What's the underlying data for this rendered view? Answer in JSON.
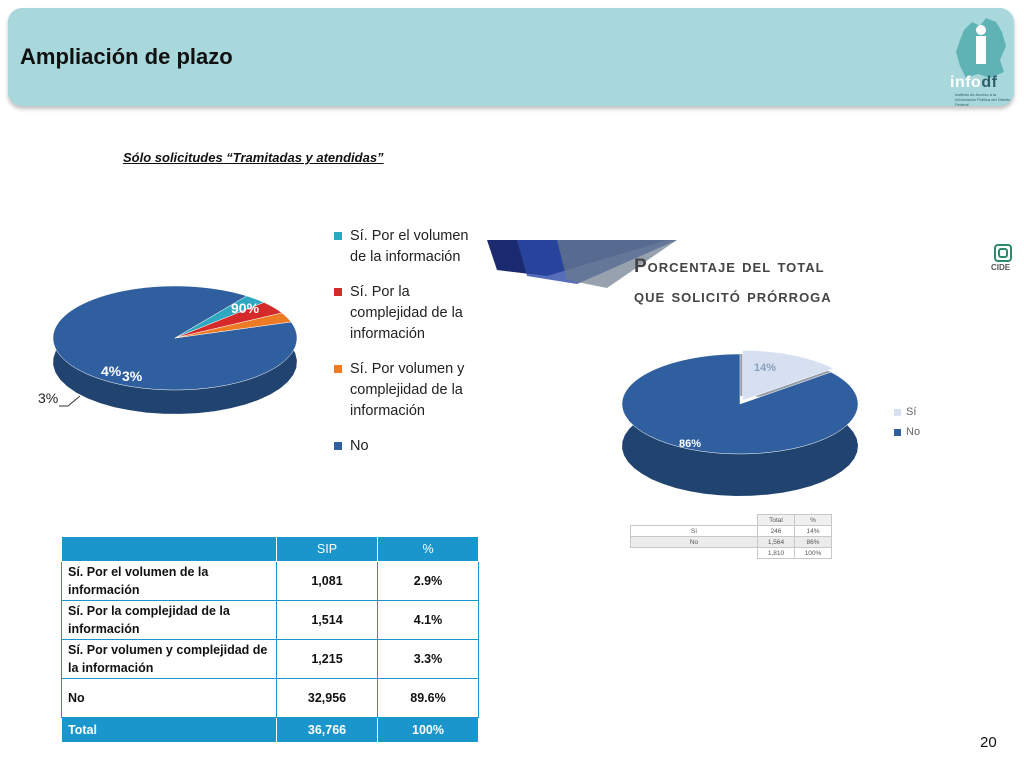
{
  "header": {
    "title": "Ampliación de plazo",
    "logo_text": "info",
    "logo_text_accent": "df",
    "logo_subtitle": "Instituto de Acceso a la Información Pública del Distrito Federal"
  },
  "subtitle": "Sólo solicitudes “Tramitadas y atendidas”",
  "colors": {
    "blue": "#2f5f9e",
    "cyan": "#2ea8c0",
    "red": "#d42a2a",
    "orange": "#ee7a24",
    "light": "#d6e0f0",
    "header_bg": "#a8d8db",
    "table_blue": "#1a96cd"
  },
  "chart_data": [
    {
      "type": "pie",
      "slices": [
        {
          "label": "Sí. Por el volumen de la información",
          "value": 3,
          "display": "3%",
          "color": "#2ea8c0"
        },
        {
          "label": "Sí. Por la complejidad de la información",
          "value": 4,
          "display": "4%",
          "color": "#d42a2a"
        },
        {
          "label": "Sí. Por volumen y complejidad de la información",
          "value": 3,
          "display": "3%",
          "color": "#ee7a24"
        },
        {
          "label": "No",
          "value": 90,
          "display": "90%",
          "color": "#2f5f9e"
        }
      ],
      "legend_position": "right",
      "labels": {
        "big": "90%",
        "a": "4%",
        "b": "3%",
        "outside": "3%"
      }
    },
    {
      "type": "pie",
      "title_line1": "Porcentaje del total",
      "title_line2": "que solicitó prórroga",
      "slices": [
        {
          "label": "Sí",
          "value": 14,
          "display": "14%",
          "color": "#d6e0f0"
        },
        {
          "label": "No",
          "value": 86,
          "display": "86%",
          "color": "#2f5f9e"
        }
      ],
      "legend_position": "right"
    }
  ],
  "small_table": {
    "headers": [
      "Total",
      "%"
    ],
    "rows": [
      {
        "label": "Sí",
        "total": "246",
        "pct": "14%"
      },
      {
        "label": "No",
        "total": "1,564",
        "pct": "86%"
      }
    ],
    "footer": {
      "total": "1,810",
      "pct": "100%"
    }
  },
  "main_table": {
    "headers": [
      "",
      "SIP",
      "%"
    ],
    "rows": [
      {
        "label": "Sí. Por el volumen de la información",
        "sip": "1,081",
        "pct": "2.9%"
      },
      {
        "label": "Sí. Por la complejidad de la información",
        "sip": "1,514",
        "pct": "4.1%"
      },
      {
        "label": "Sí. Por volumen y complejidad de la información",
        "sip": "1,215",
        "pct": "3.3%"
      },
      {
        "label": "No",
        "sip": "32,956",
        "pct": "89.6%"
      }
    ],
    "total": {
      "label": "Total",
      "sip": "36,766",
      "pct": "100%"
    }
  },
  "cide_label": "CIDE",
  "page_number": "20"
}
